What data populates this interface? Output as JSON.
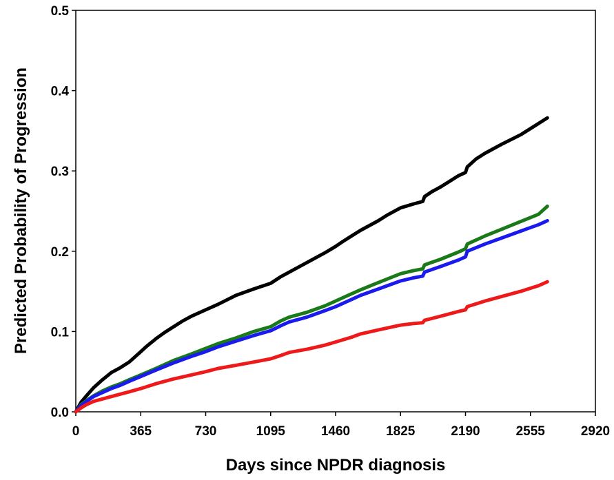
{
  "chart_data": {
    "type": "line",
    "title": "",
    "xlabel": "Days since NPDR diagnosis",
    "ylabel": "Predicted Probability of Progression",
    "xlim": [
      0,
      2920
    ],
    "ylim": [
      0,
      0.5
    ],
    "x_ticks": [
      "0",
      "365",
      "730",
      "1095",
      "1460",
      "1825",
      "2190",
      "2555",
      "2920"
    ],
    "y_ticks": [
      "0.0",
      "0.1",
      "0.2",
      "0.3",
      "0.4",
      "0.5"
    ],
    "grid": false,
    "legend": "none",
    "series": [
      {
        "color": "#000000",
        "x": [
          0,
          30,
          60,
          100,
          150,
          200,
          250,
          300,
          365,
          400,
          450,
          500,
          550,
          600,
          650,
          730,
          800,
          900,
          1000,
          1095,
          1150,
          1200,
          1250,
          1300,
          1350,
          1400,
          1460,
          1500,
          1550,
          1600,
          1650,
          1700,
          1750,
          1825,
          1900,
          1950,
          1960,
          2000,
          2050,
          2100,
          2150,
          2190,
          2200,
          2250,
          2300,
          2400,
          2500,
          2600,
          2650
        ],
        "y": [
          0,
          0.012,
          0.02,
          0.03,
          0.04,
          0.049,
          0.055,
          0.062,
          0.075,
          0.082,
          0.091,
          0.099,
          0.106,
          0.113,
          0.119,
          0.127,
          0.134,
          0.145,
          0.153,
          0.16,
          0.168,
          0.174,
          0.18,
          0.186,
          0.192,
          0.198,
          0.206,
          0.212,
          0.219,
          0.226,
          0.232,
          0.238,
          0.245,
          0.254,
          0.259,
          0.262,
          0.268,
          0.274,
          0.28,
          0.287,
          0.294,
          0.298,
          0.305,
          0.315,
          0.322,
          0.334,
          0.345,
          0.359,
          0.366
        ]
      },
      {
        "color": "#1a7a1a",
        "x": [
          0,
          30,
          60,
          100,
          150,
          200,
          250,
          300,
          365,
          450,
          550,
          650,
          730,
          800,
          900,
          1000,
          1095,
          1150,
          1200,
          1300,
          1400,
          1460,
          1550,
          1600,
          1700,
          1825,
          1900,
          1950,
          1960,
          2050,
          2150,
          2190,
          2200,
          2300,
          2400,
          2500,
          2600,
          2650
        ],
        "y": [
          0,
          0.009,
          0.014,
          0.02,
          0.026,
          0.031,
          0.035,
          0.04,
          0.046,
          0.054,
          0.064,
          0.072,
          0.079,
          0.085,
          0.092,
          0.1,
          0.106,
          0.113,
          0.118,
          0.124,
          0.132,
          0.138,
          0.147,
          0.152,
          0.161,
          0.172,
          0.176,
          0.178,
          0.183,
          0.19,
          0.199,
          0.203,
          0.209,
          0.219,
          0.228,
          0.237,
          0.246,
          0.256
        ]
      },
      {
        "color": "#1a1aee",
        "x": [
          0,
          30,
          60,
          100,
          150,
          200,
          250,
          300,
          365,
          450,
          550,
          650,
          730,
          800,
          900,
          1000,
          1095,
          1150,
          1200,
          1300,
          1400,
          1460,
          1550,
          1600,
          1700,
          1825,
          1900,
          1950,
          1960,
          2050,
          2150,
          2190,
          2200,
          2300,
          2400,
          2500,
          2600,
          2650
        ],
        "y": [
          0,
          0.008,
          0.013,
          0.019,
          0.024,
          0.029,
          0.033,
          0.038,
          0.044,
          0.052,
          0.061,
          0.069,
          0.075,
          0.081,
          0.088,
          0.095,
          0.101,
          0.107,
          0.112,
          0.118,
          0.126,
          0.131,
          0.14,
          0.145,
          0.153,
          0.163,
          0.167,
          0.169,
          0.174,
          0.181,
          0.189,
          0.193,
          0.2,
          0.209,
          0.217,
          0.225,
          0.233,
          0.238
        ]
      },
      {
        "color": "#ee1a1a",
        "x": [
          0,
          30,
          60,
          100,
          150,
          200,
          250,
          300,
          365,
          450,
          550,
          650,
          730,
          800,
          900,
          1000,
          1095,
          1150,
          1200,
          1300,
          1400,
          1460,
          1550,
          1600,
          1700,
          1825,
          1900,
          1950,
          1960,
          2050,
          2150,
          2190,
          2200,
          2300,
          2400,
          2500,
          2600,
          2650
        ],
        "y": [
          0,
          0.005,
          0.009,
          0.013,
          0.016,
          0.019,
          0.022,
          0.025,
          0.029,
          0.035,
          0.041,
          0.046,
          0.05,
          0.054,
          0.058,
          0.062,
          0.066,
          0.07,
          0.074,
          0.078,
          0.083,
          0.087,
          0.093,
          0.097,
          0.102,
          0.108,
          0.11,
          0.111,
          0.114,
          0.119,
          0.125,
          0.127,
          0.131,
          0.138,
          0.144,
          0.15,
          0.157,
          0.162
        ]
      }
    ]
  }
}
